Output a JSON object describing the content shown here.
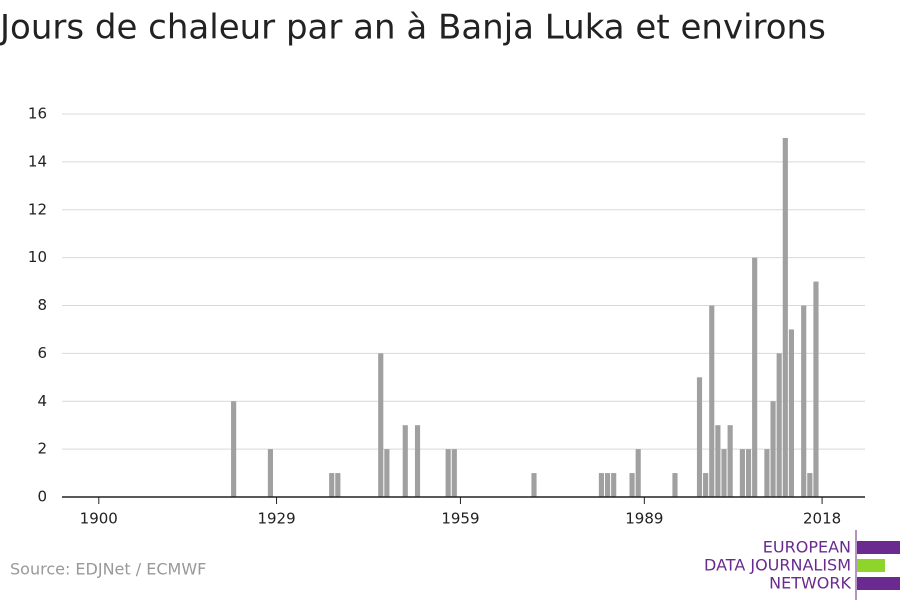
{
  "chart_data": {
    "type": "bar",
    "title": "Jours de chaleur par an à Banja Luka et environs",
    "x": [
      1922,
      1928,
      1938,
      1939,
      1946,
      1947,
      1950,
      1952,
      1957,
      1958,
      1971,
      1982,
      1983,
      1984,
      1987,
      1988,
      1994,
      1998,
      1999,
      2000,
      2001,
      2002,
      2003,
      2005,
      2006,
      2007,
      2009,
      2010,
      2011,
      2012,
      2013,
      2015,
      2016,
      2017
    ],
    "values": [
      4,
      2,
      1,
      1,
      6,
      2,
      3,
      3,
      2,
      2,
      1,
      1,
      1,
      1,
      1,
      2,
      1,
      5,
      1,
      8,
      3,
      2,
      3,
      2,
      2,
      10,
      2,
      4,
      6,
      15,
      7,
      8,
      1,
      9
    ],
    "color": "#a0a0a0",
    "xlim": [
      1894,
      2025
    ],
    "xticks": [
      1900,
      1929,
      1959,
      1989,
      2018
    ],
    "ylim": [
      0,
      16
    ],
    "yticks": [
      0,
      2,
      4,
      6,
      8,
      10,
      12,
      14,
      16
    ],
    "grid": true,
    "source": "Source: EDJNet / ECMWF",
    "logo": [
      "EUROPEAN",
      "DATA JOURNALISM",
      "NETWORK"
    ]
  }
}
